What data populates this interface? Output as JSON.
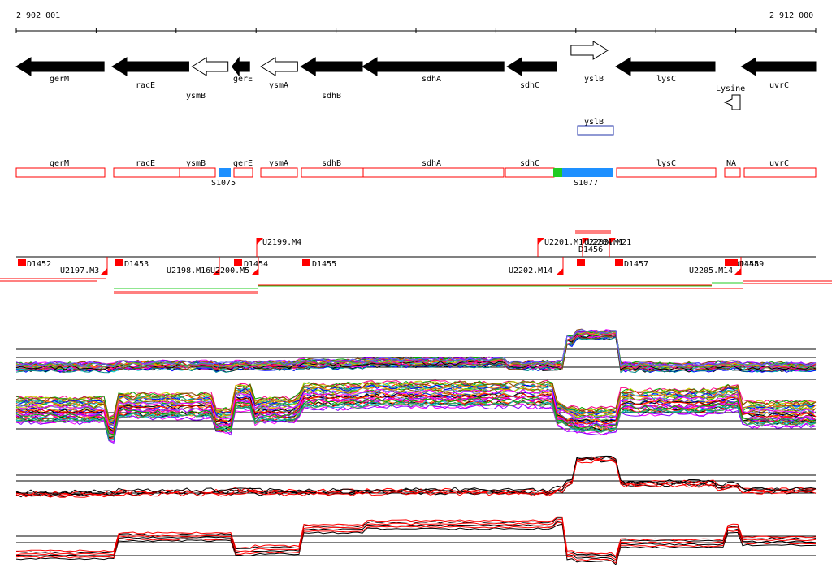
{
  "ruler": {
    "start_label": "2 902 001",
    "end_label": "2 912 000"
  },
  "genes": [
    {
      "name": "gerM",
      "strand": "-",
      "filled": true,
      "start": 2902001,
      "end": 2903100
    },
    {
      "name": "racE",
      "strand": "-",
      "filled": true,
      "start": 2903200,
      "end": 2904160
    },
    {
      "name": "ysmB",
      "strand": "-",
      "filled": false,
      "start": 2904200,
      "end": 2904650
    },
    {
      "name": "gerE",
      "strand": "-",
      "filled": true,
      "start": 2904700,
      "end": 2904920
    },
    {
      "name": "ysmA",
      "strand": "-",
      "filled": false,
      "start": 2905060,
      "end": 2905520
    },
    {
      "name": "sdhB",
      "strand": "-",
      "filled": true,
      "start": 2905560,
      "end": 2906330
    },
    {
      "name": "sdhA",
      "strand": "-",
      "filled": true,
      "start": 2906330,
      "end": 2908100
    },
    {
      "name": "sdhC",
      "strand": "-",
      "filled": true,
      "start": 2908140,
      "end": 2908760
    },
    {
      "name": "yslB",
      "strand": "+",
      "filled": false,
      "start": 2908940,
      "end": 2909400
    },
    {
      "name": "lysC",
      "strand": "-",
      "filled": true,
      "start": 2909500,
      "end": 2910740
    },
    {
      "name": "uvrC",
      "strand": "-",
      "filled": true,
      "start": 2911070,
      "end": 2912000
    }
  ],
  "riboswitch": {
    "name": "Lysine"
  },
  "yslB_box": {
    "label": "yslB"
  },
  "segments": [
    {
      "name": "gerM"
    },
    {
      "name": "racE"
    },
    {
      "name": "ysmB"
    },
    {
      "name": "gerE"
    },
    {
      "name": "ysmA"
    },
    {
      "name": "sdhB"
    },
    {
      "name": "sdhA"
    },
    {
      "name": "sdhC"
    },
    {
      "name": "lysC"
    },
    {
      "name": "NA"
    },
    {
      "name": "uvrC"
    }
  ],
  "s_features": [
    {
      "name": "S1075",
      "color": "#1e90ff"
    },
    {
      "name": "S1077",
      "color": "#1e90ff"
    },
    {
      "name": "",
      "color": "#22cc22"
    }
  ],
  "down_markers": [
    "D1452",
    "D1453",
    "D1454",
    "D1455",
    "D1456",
    "D1457",
    "D1458",
    "D1459"
  ],
  "upshift_markers": [
    "U2197.M3",
    "U2198.M16",
    "U2199.M4",
    "U2200.M5",
    "U2201.M1",
    "U2202.M14",
    "U2203.M1",
    "U2204.M21",
    "U2205.M14"
  ],
  "colors": {
    "feature_outline": "#ff0000",
    "arrow_fill": "#000000",
    "accent_blue": "#1e90ff",
    "accent_green": "#22cc22",
    "trace_red": "#ff0000"
  }
}
